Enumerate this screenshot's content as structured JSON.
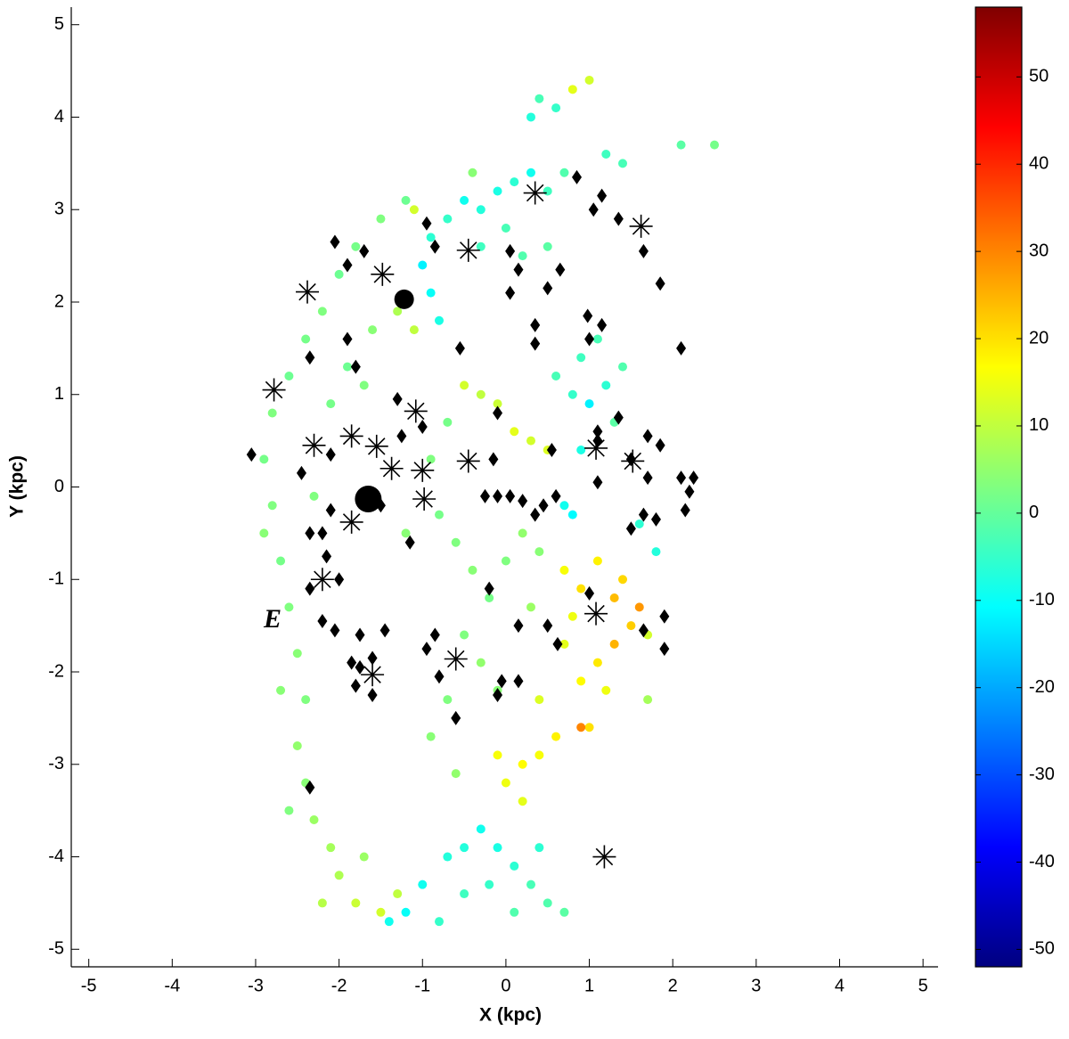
{
  "chart_data": {
    "type": "scatter",
    "xlabel": "X (kpc)",
    "ylabel": "Y (kpc)",
    "annotation": "E",
    "xlim": [
      -5.21,
      5.18
    ],
    "ylim": [
      -5.19,
      5.19
    ],
    "xticks": [
      -5,
      -4,
      -3,
      -2,
      -1,
      0,
      1,
      2,
      3,
      4,
      5
    ],
    "yticks": [
      -5,
      -4,
      -3,
      -2,
      -1,
      0,
      1,
      2,
      3,
      4,
      5
    ],
    "grid": false,
    "colormap": "jet",
    "clim": [
      -52,
      58
    ],
    "cticks": [
      -50,
      -40,
      -30,
      -20,
      -10,
      0,
      10,
      20,
      30,
      40,
      50
    ],
    "series": [
      {
        "marker": "dot",
        "x": [
          -2.9,
          -2.8,
          -2.9,
          -2.7,
          -2.8,
          -2.6,
          -2.4,
          -2.2,
          -2.0,
          -1.8,
          -1.5,
          -1.2,
          -2.6,
          -2.5,
          -2.4,
          -2.5,
          -2.4,
          -2.3,
          -2.1,
          -2.0,
          -1.8,
          -1.5,
          -1.3,
          -2.2,
          -1.7,
          -2.6,
          -2.7,
          -2.3,
          -2.1,
          -1.9,
          -1.7,
          -1.6,
          -1.3,
          -1.1,
          -1.0,
          -0.9,
          -0.8,
          -0.9,
          -0.7,
          -1.1,
          -0.5,
          -0.3,
          -0.1,
          0.1,
          0.3,
          0.5,
          0.7,
          0.3,
          0.6,
          0.8,
          1.0,
          1.2,
          1.4,
          2.1,
          2.5,
          0.0,
          -0.3,
          0.2,
          0.5,
          0.4,
          -0.4,
          0.6,
          0.8,
          1.0,
          1.2,
          1.4,
          0.9,
          1.1,
          1.3,
          0.9,
          0.7,
          0.8,
          0.1,
          0.3,
          0.5,
          -0.5,
          -0.3,
          -0.1,
          1.6,
          1.8,
          -0.8,
          -0.6,
          -0.4,
          -0.2,
          0.0,
          0.2,
          0.4,
          0.3,
          -0.9,
          -0.7,
          -1.2,
          -0.5,
          -0.3,
          -0.1,
          -0.7,
          -0.9,
          -0.6,
          0.7,
          0.9,
          1.1,
          1.3,
          1.5,
          1.6,
          1.3,
          1.1,
          0.9,
          0.7,
          0.8,
          1.4,
          1.7,
          1.2,
          1.0,
          0.9,
          0.6,
          0.4,
          0.2,
          0.0,
          0.2,
          -0.1,
          0.4,
          1.7,
          -0.5,
          -0.3,
          -0.1,
          0.1,
          0.3,
          0.5,
          0.7,
          -0.2,
          0.1,
          -0.7,
          -1.0,
          -1.2,
          -1.4,
          -0.8,
          -0.5,
          0.4
        ],
        "y": [
          0.3,
          -0.2,
          -0.5,
          -0.8,
          0.8,
          1.2,
          1.6,
          1.9,
          2.3,
          2.6,
          2.9,
          3.1,
          -1.3,
          -1.8,
          -2.3,
          -2.8,
          -3.2,
          -3.6,
          -3.9,
          -4.2,
          -4.5,
          -4.6,
          -4.4,
          -4.5,
          -4.0,
          -3.5,
          -2.2,
          -0.1,
          0.9,
          1.3,
          1.1,
          1.7,
          1.9,
          1.7,
          2.4,
          2.1,
          1.8,
          2.7,
          2.9,
          3.0,
          3.1,
          3.0,
          3.2,
          3.3,
          3.4,
          3.2,
          3.4,
          4.0,
          4.1,
          4.3,
          4.4,
          3.6,
          3.5,
          3.7,
          3.7,
          2.8,
          2.6,
          2.5,
          2.6,
          4.2,
          3.4,
          1.2,
          1.0,
          0.9,
          1.1,
          1.3,
          1.4,
          1.6,
          0.7,
          0.4,
          -0.2,
          -0.3,
          0.6,
          0.5,
          0.4,
          1.1,
          1.0,
          0.9,
          -0.4,
          -0.7,
          -0.3,
          -0.6,
          -0.9,
          -1.2,
          -0.8,
          -0.5,
          -0.7,
          -1.3,
          0.3,
          0.7,
          -0.5,
          -1.6,
          -1.9,
          -2.2,
          -2.3,
          -2.7,
          -3.1,
          -0.9,
          -1.1,
          -0.8,
          -1.2,
          -1.5,
          -1.3,
          -1.7,
          -1.9,
          -2.1,
          -1.7,
          -1.4,
          -1.0,
          -1.6,
          -2.2,
          -2.6,
          -2.6,
          -2.7,
          -2.9,
          -3.0,
          -3.2,
          -3.4,
          -2.9,
          -2.3,
          -2.3,
          -3.9,
          -3.7,
          -3.9,
          -4.1,
          -4.3,
          -4.5,
          -4.6,
          -4.3,
          -4.6,
          -4.0,
          -4.3,
          -4.6,
          -4.7,
          -4.7,
          -4.4,
          -3.9
        ],
        "c": [
          2,
          3,
          4,
          2,
          3,
          1,
          2,
          3,
          1,
          2,
          3,
          1,
          3,
          4,
          3,
          5,
          4,
          6,
          7,
          8,
          11,
          12,
          10,
          9,
          6,
          3,
          4,
          3,
          2,
          1,
          3,
          4,
          8,
          10,
          -12,
          -10,
          -8,
          -6,
          -5,
          12,
          -9,
          -7,
          -8,
          -6,
          -9,
          -4,
          -2,
          -7,
          -5,
          14,
          12,
          -4,
          -3,
          -1,
          2,
          -3,
          -4,
          -2,
          -1,
          -3,
          4,
          -3,
          -5,
          -12,
          -6,
          -2,
          -4,
          -3,
          -1,
          -8,
          -9,
          -11,
          14,
          12,
          13,
          12,
          10,
          11,
          -6,
          -7,
          2,
          3,
          4,
          2,
          3,
          5,
          4,
          6,
          3,
          2,
          4,
          3,
          5,
          4,
          3,
          4,
          5,
          16,
          20,
          18,
          24,
          22,
          28,
          25,
          19,
          17,
          14,
          15,
          21,
          12,
          15,
          20,
          30,
          18,
          16,
          17,
          15,
          14,
          16,
          13,
          7,
          -7,
          -9,
          -8,
          -6,
          -3,
          -2,
          -1,
          -5,
          -2,
          -7,
          -9,
          -10,
          -9,
          -5,
          -4,
          -6
        ]
      },
      {
        "marker": "diamond",
        "color": "#000000",
        "x": [
          -3.05,
          -2.05,
          -1.9,
          -1.7,
          -2.35,
          -1.9,
          -1.8,
          -2.1,
          -2.45,
          -2.1,
          -2.35,
          -2.2,
          -2.15,
          -2.35,
          -2.0,
          -2.2,
          -2.05,
          -1.85,
          -1.75,
          -1.8,
          -1.6,
          -1.6,
          -1.75,
          -1.45,
          -1.3,
          -1.25,
          -1.15,
          -1.5,
          -1.0,
          -0.95,
          -0.85,
          -0.55,
          -0.1,
          -0.15,
          -0.25,
          -0.1,
          0.05,
          0.2,
          0.35,
          0.45,
          0.6,
          0.55,
          -0.85,
          -0.95,
          -0.8,
          -0.6,
          -0.2,
          -0.1,
          -0.05,
          0.15,
          0.15,
          0.5,
          0.62,
          0.65,
          0.5,
          0.05,
          0.15,
          0.05,
          0.35,
          0.35,
          0.85,
          1.05,
          1.15,
          1.35,
          1.65,
          1.85,
          0.98,
          1.15,
          1.0,
          2.1,
          1.35,
          1.1,
          1.1,
          1.7,
          1.85,
          1.5,
          1.7,
          2.1,
          2.25,
          2.2,
          2.15,
          1.8,
          1.65,
          1.5,
          1.0,
          1.9,
          1.65,
          1.9,
          -2.35,
          1.1
        ],
        "y": [
          0.35,
          2.65,
          2.4,
          2.55,
          1.4,
          1.6,
          1.3,
          0.35,
          0.15,
          -0.25,
          -0.5,
          -0.5,
          -0.75,
          -1.1,
          -1.0,
          -1.45,
          -1.55,
          -1.9,
          -1.95,
          -2.15,
          -1.85,
          -2.25,
          -1.6,
          -1.55,
          0.95,
          0.55,
          -0.6,
          -0.2,
          0.65,
          2.85,
          2.6,
          1.5,
          0.8,
          0.3,
          -0.1,
          -0.1,
          -0.1,
          -0.15,
          -0.3,
          -0.2,
          -0.1,
          0.4,
          -1.6,
          -1.75,
          -2.05,
          -2.5,
          -1.1,
          -2.25,
          -2.1,
          -2.1,
          -1.5,
          -1.5,
          -1.7,
          2.35,
          2.15,
          2.55,
          2.35,
          2.1,
          1.75,
          1.55,
          3.35,
          3.0,
          3.15,
          2.9,
          2.55,
          2.2,
          1.85,
          1.75,
          1.6,
          1.5,
          0.75,
          0.6,
          0.05,
          0.55,
          0.45,
          0.3,
          0.1,
          0.1,
          0.1,
          -0.05,
          -0.25,
          -0.35,
          -0.3,
          -0.45,
          -1.15,
          -1.4,
          -1.55,
          -1.75,
          -3.25,
          0.5
        ]
      },
      {
        "marker": "asterisk",
        "color": "#000000",
        "x": [
          0.35,
          1.62,
          -0.45,
          -1.48,
          -2.38,
          -2.78,
          -1.08,
          -2.3,
          -1.85,
          -1.55,
          -1.37,
          -1.0,
          -0.45,
          1.08,
          1.52,
          -0.98,
          -1.85,
          -2.2,
          1.08,
          -0.6,
          -1.6,
          1.18
        ],
        "y": [
          3.18,
          2.82,
          2.56,
          2.3,
          2.11,
          1.05,
          0.82,
          0.45,
          0.55,
          0.44,
          0.2,
          0.18,
          0.28,
          0.42,
          0.28,
          -0.13,
          -0.38,
          -1.0,
          -1.37,
          -1.86,
          -2.03,
          -4.0
        ]
      },
      {
        "marker": "circle",
        "color": "#000000",
        "x": [
          -1.22,
          -1.65
        ],
        "y": [
          2.03,
          -0.13
        ]
      }
    ]
  }
}
